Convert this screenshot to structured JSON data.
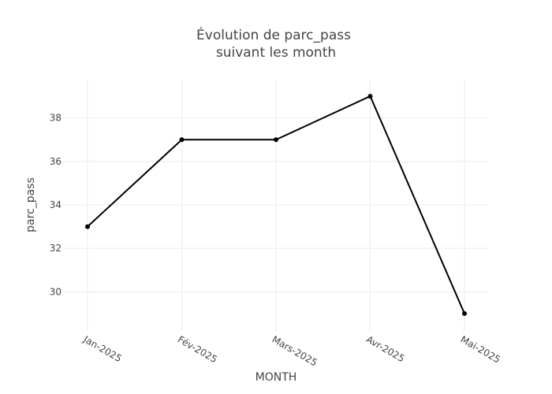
{
  "chart_data": {
    "type": "line",
    "title_lines": [
      "Évolution de parc_pass",
      "suivant les month"
    ],
    "xlabel": "MONTH",
    "ylabel": "parc_pass",
    "categories": [
      "Jan-2025",
      "Fév-2025",
      "Mars-2025",
      "Avr-2025",
      "Mai-2025"
    ],
    "series": [
      {
        "values": [
          33,
          37,
          37,
          39,
          29
        ]
      }
    ],
    "yticks": [
      30,
      32,
      34,
      36,
      38
    ],
    "ylim": [
      28.2,
      39.8
    ],
    "grid": true,
    "colors": {
      "line": "#000000",
      "grid": "#ececec",
      "text": "#444444"
    }
  }
}
